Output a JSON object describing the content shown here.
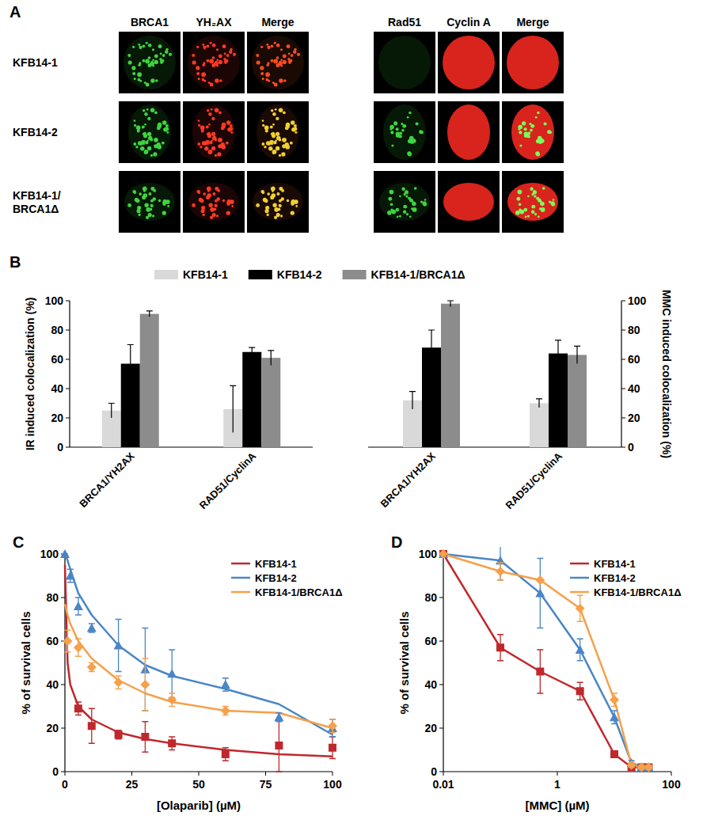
{
  "panel_a": {
    "panel_label": "A",
    "columns": [
      "BRCA1",
      "ΥH₂AX",
      "Merge",
      "Rad51",
      "Cyclin A",
      "Merge"
    ],
    "rows": [
      [
        "KFB14-1"
      ],
      [
        "KFB14-2"
      ],
      [
        "KFB14-1/",
        "BRCA1Δ"
      ]
    ]
  },
  "chart_data": [
    {
      "type": "bar",
      "panel_label": "B",
      "y_label": "IR induced colocalization (%)",
      "categories": [
        "BRCA1/YH2AX",
        "RAD51/CyclinA"
      ],
      "series": [
        {
          "name": "KFB14-1",
          "color": "#d9d9d9",
          "values": [
            25,
            26
          ],
          "errors": [
            5,
            16
          ]
        },
        {
          "name": "KFB14-2",
          "color": "#000000",
          "values": [
            57,
            65
          ],
          "errors": [
            13,
            3
          ]
        },
        {
          "name": "KFB14-1/BRCA1Δ",
          "color": "#8c8c8c",
          "values": [
            91,
            61
          ],
          "errors": [
            2,
            5
          ]
        }
      ],
      "ylim": [
        0,
        100
      ],
      "yticks": [
        0,
        20,
        40,
        60,
        80,
        100
      ],
      "legend": "top"
    },
    {
      "type": "bar",
      "y_label": "MMC induced colocalization (%)",
      "categories": [
        "BRCA1/YH2AX",
        "RAD51/CyclinA"
      ],
      "series": [
        {
          "color": "#d9d9d9",
          "values": [
            32,
            30
          ],
          "errors": [
            6,
            3
          ],
          "axis": "y2"
        },
        {
          "color": "#000000",
          "values": [
            68,
            64
          ],
          "errors": [
            12,
            9
          ],
          "axis": "y2"
        },
        {
          "color": "#8c8c8c",
          "values": [
            98,
            63
          ],
          "errors": [
            2,
            6
          ],
          "axis": "y2"
        }
      ],
      "y2lim": [
        0,
        100
      ],
      "y2ticks": [
        0,
        20,
        40,
        60,
        80,
        100
      ]
    },
    {
      "type": "scatter",
      "panel_label": "C",
      "x_label": "[Olaparib] (µM)",
      "y_label": "% of survival cells",
      "xlim": [
        0,
        100
      ],
      "xticks": [
        0,
        25,
        50,
        75,
        100
      ],
      "ylim": [
        0,
        100
      ],
      "yticks": [
        0,
        20,
        40,
        60,
        80,
        100
      ],
      "legend": "top-right",
      "fit_x": [
        0,
        1,
        2,
        5,
        10,
        20,
        30,
        40,
        60,
        80,
        100
      ],
      "series": [
        {
          "name": "KFB14-1",
          "color": "#c0282d",
          "marker": "square",
          "x": [
            5,
            10,
            20,
            30,
            40,
            60,
            80,
            100
          ],
          "values": [
            29,
            21,
            17,
            16,
            13,
            8,
            12,
            11
          ],
          "errors": [
            3,
            8,
            2,
            7,
            3,
            3,
            12,
            5
          ],
          "fit": [
            95,
            50,
            40,
            30,
            24,
            18,
            15,
            13,
            10,
            8,
            7
          ]
        },
        {
          "name": "KFB14-2",
          "color": "#4a86c5",
          "marker": "triangle",
          "x": [
            0,
            2,
            5,
            10,
            20,
            30,
            40,
            60,
            80,
            100
          ],
          "values": [
            100,
            90,
            76,
            66,
            58,
            47,
            45,
            40,
            25,
            20
          ],
          "errors": [
            0,
            3,
            4,
            2,
            12,
            19,
            11,
            3,
            2,
            4
          ],
          "fit": [
            100,
            97,
            93,
            82,
            72,
            58,
            49,
            44,
            38,
            31,
            17
          ]
        },
        {
          "name": "KFB14-1/BRCA1Δ",
          "color": "#f5a04a",
          "marker": "diamond",
          "x": [
            1,
            5,
            10,
            20,
            30,
            40,
            60,
            100
          ],
          "values": [
            60,
            57,
            48,
            41,
            40,
            33,
            28,
            21
          ],
          "errors": [
            5,
            4,
            2,
            3,
            12,
            3,
            2,
            3
          ],
          "fit": [
            77,
            72,
            68,
            60,
            52,
            42,
            36,
            32,
            28,
            27,
            20
          ]
        }
      ]
    },
    {
      "type": "line",
      "panel_label": "D",
      "x_label": "[MMC] (µM)",
      "y_label": "% of survival cells",
      "log": "x",
      "xlim": [
        0.01,
        100
      ],
      "xticks": [
        0.01,
        1,
        100
      ],
      "ylim": [
        0,
        100
      ],
      "yticks": [
        0,
        20,
        40,
        60,
        80,
        100
      ],
      "legend": "top-right",
      "series": [
        {
          "name": "KFB14-1",
          "color": "#c0282d",
          "marker": "square",
          "x": [
            0.01,
            0.1,
            0.5,
            2.5,
            10,
            20,
            30,
            40
          ],
          "values": [
            100,
            57,
            46,
            37,
            8,
            2,
            2,
            2
          ],
          "errors": [
            0,
            6,
            10,
            4,
            1,
            1,
            1,
            1
          ]
        },
        {
          "name": "KFB14-2",
          "color": "#4a86c5",
          "marker": "triangle",
          "x": [
            0.01,
            0.1,
            0.5,
            2.5,
            10,
            20,
            30,
            40
          ],
          "values": [
            100,
            97,
            82,
            56,
            25,
            4,
            2,
            2
          ],
          "errors": [
            0,
            9,
            16,
            5,
            3,
            1,
            1,
            1
          ]
        },
        {
          "name": "KFB14-1/BRCA1Δ",
          "color": "#f5a04a",
          "marker": "diamond",
          "x": [
            0.01,
            0.1,
            0.5,
            2.5,
            10,
            20,
            30,
            40
          ],
          "values": [
            100,
            92,
            88,
            75,
            33,
            3,
            2,
            2
          ],
          "errors": [
            0,
            4,
            0,
            6,
            3,
            1,
            1,
            1
          ]
        }
      ]
    }
  ]
}
